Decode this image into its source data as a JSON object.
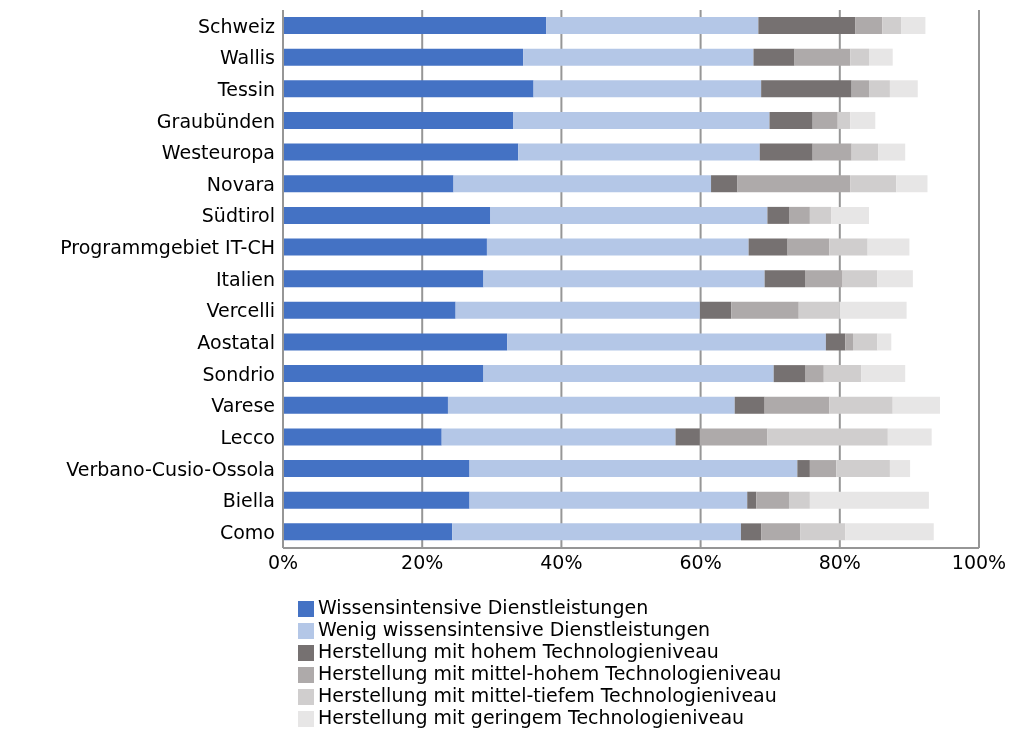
{
  "chart_data": {
    "type": "bar",
    "orientation": "horizontal",
    "stacked": true,
    "categories": [
      "Schweiz",
      "Wallis",
      "Tessin",
      "Graubünden",
      "Westeuropa",
      "Novara",
      "Südtirol",
      "Programmgebiet IT-CH",
      "Italien",
      "Vercelli",
      "Aostatal",
      "Sondrio",
      "Varese",
      "Lecco",
      "Verbano-Cusio-Ossola",
      "Biella",
      "Como"
    ],
    "series": [
      {
        "name": "Wissensintensive Dienstleistungen",
        "color": "#4472c4",
        "values": [
          37.8,
          34.5,
          36.0,
          33.1,
          33.8,
          24.5,
          29.8,
          29.3,
          28.8,
          24.8,
          32.2,
          28.8,
          23.7,
          22.8,
          26.8,
          26.8,
          24.3
        ]
      },
      {
        "name": "Wenig wissensintensive Dienstleistungen",
        "color": "#b4c7e7",
        "values": [
          30.5,
          33.1,
          32.7,
          36.8,
          34.7,
          37.0,
          39.8,
          37.6,
          40.4,
          35.1,
          45.8,
          41.7,
          41.2,
          33.6,
          47.1,
          39.9,
          41.5
        ]
      },
      {
        "name": "Herstellung mit hohem Technologieniveau",
        "color": "#767171",
        "values": [
          13.9,
          5.9,
          13.0,
          6.2,
          7.6,
          3.8,
          3.1,
          5.6,
          5.8,
          4.5,
          2.8,
          4.5,
          4.3,
          3.5,
          1.8,
          1.3,
          2.9
        ]
      },
      {
        "name": "Herstellung mit mittel-hohem Technologieniveau",
        "color": "#aeaaaa",
        "values": [
          3.9,
          8.0,
          2.5,
          3.6,
          5.6,
          16.2,
          3.0,
          6.0,
          5.4,
          9.7,
          1.1,
          2.7,
          9.3,
          9.7,
          3.8,
          4.7,
          5.6
        ]
      },
      {
        "name": "Herstellung mit mittel-tiefem Technologieniveau",
        "color": "#d0cece",
        "values": [
          2.7,
          2.7,
          3.0,
          1.8,
          3.8,
          6.6,
          3.1,
          5.5,
          5.0,
          5.9,
          3.5,
          5.4,
          9.1,
          17.3,
          7.7,
          3.0,
          6.5
        ]
      },
      {
        "name": "Herstellung mit geringem Technologieniveau",
        "color": "#e7e6e6",
        "values": [
          3.5,
          3.4,
          4.0,
          3.6,
          3.9,
          4.5,
          5.4,
          6.0,
          5.1,
          9.6,
          2.0,
          6.3,
          6.8,
          6.3,
          2.9,
          17.1,
          12.7
        ]
      }
    ],
    "xlim": [
      0,
      100
    ],
    "xticks": [
      {
        "value": 0,
        "label": "0%"
      },
      {
        "value": 20,
        "label": "20%"
      },
      {
        "value": 40,
        "label": "40%"
      },
      {
        "value": 60,
        "label": "60%"
      },
      {
        "value": 80,
        "label": "80%"
      },
      {
        "value": 100,
        "label": "100%"
      }
    ],
    "grid": "x",
    "legend": "bottom"
  }
}
